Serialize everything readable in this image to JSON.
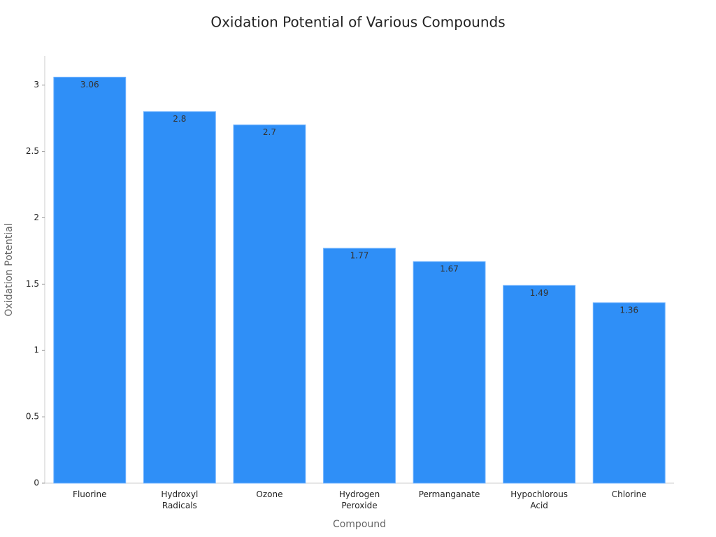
{
  "chart_data": {
    "type": "bar",
    "title": "Oxidation Potential of Various Compounds",
    "x_label": "Compound",
    "y_label": "Oxidation Potential",
    "categories": [
      "Fluorine",
      "Hydroxyl Radicals",
      "Ozone",
      "Hydrogen Peroxide",
      "Permanganate",
      "Hypochlorous Acid",
      "Chlorine"
    ],
    "values": [
      3.06,
      2.8,
      2.7,
      1.77,
      1.67,
      1.49,
      1.36
    ],
    "color": "#2f8ff7",
    "ylim": [
      0,
      3.22
    ],
    "yticks": [
      0,
      0.5,
      1,
      1.5,
      2,
      2.5,
      3
    ],
    "grid": false
  }
}
